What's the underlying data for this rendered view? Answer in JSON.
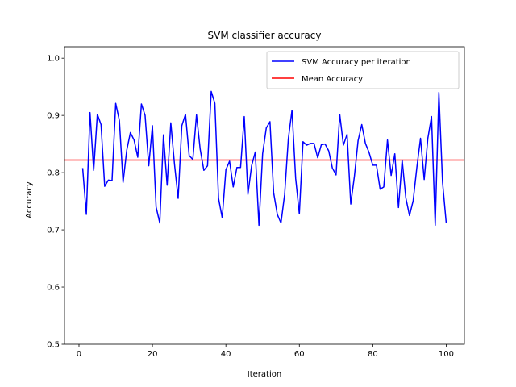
{
  "chart_data": {
    "type": "line",
    "title": "SVM classifier accuracy",
    "xlabel": "Iteration",
    "ylabel": "Accuracy",
    "xlim": [
      -3.95,
      104.95
    ],
    "ylim": [
      0.5,
      1.02
    ],
    "xticks": [
      0,
      20,
      40,
      60,
      80,
      100
    ],
    "yticks": [
      0.5,
      0.6,
      0.7,
      0.8,
      0.9,
      1.0
    ],
    "ytick_labels": [
      "0.5",
      "0.6",
      "0.7",
      "0.8",
      "0.9",
      "1.0"
    ],
    "grid": false,
    "legend_position": "top-right",
    "series": [
      {
        "name": "SVM Accuracy per iteration",
        "color": "#0000ff",
        "x": [
          1,
          2,
          3,
          4,
          5,
          6,
          7,
          8,
          9,
          10,
          11,
          12,
          13,
          14,
          15,
          16,
          17,
          18,
          19,
          20,
          21,
          22,
          23,
          24,
          25,
          26,
          27,
          28,
          29,
          30,
          31,
          32,
          33,
          34,
          35,
          36,
          37,
          38,
          39,
          40,
          41,
          42,
          43,
          44,
          45,
          46,
          47,
          48,
          49,
          50,
          51,
          52,
          53,
          54,
          55,
          56,
          57,
          58,
          59,
          60,
          61,
          62,
          63,
          64,
          65,
          66,
          67,
          68,
          69,
          70,
          71,
          72,
          73,
          74,
          75,
          76,
          77,
          78,
          79,
          80,
          81,
          82,
          83,
          84,
          85,
          86,
          87,
          88,
          89,
          90,
          91,
          92,
          93,
          94,
          95,
          96,
          97,
          98,
          99,
          100
        ],
        "values": [
          0.808,
          0.727,
          0.905,
          0.804,
          0.902,
          0.884,
          0.776,
          0.787,
          0.786,
          0.921,
          0.891,
          0.783,
          0.839,
          0.87,
          0.857,
          0.827,
          0.92,
          0.9,
          0.812,
          0.882,
          0.74,
          0.712,
          0.866,
          0.778,
          0.887,
          0.815,
          0.755,
          0.882,
          0.902,
          0.83,
          0.823,
          0.901,
          0.841,
          0.804,
          0.812,
          0.942,
          0.921,
          0.755,
          0.721,
          0.805,
          0.82,
          0.775,
          0.809,
          0.809,
          0.898,
          0.762,
          0.812,
          0.836,
          0.708,
          0.833,
          0.878,
          0.889,
          0.765,
          0.727,
          0.712,
          0.762,
          0.859,
          0.909,
          0.79,
          0.728,
          0.854,
          0.848,
          0.851,
          0.851,
          0.826,
          0.849,
          0.85,
          0.838,
          0.808,
          0.796,
          0.902,
          0.848,
          0.867,
          0.745,
          0.794,
          0.856,
          0.884,
          0.851,
          0.835,
          0.813,
          0.813,
          0.771,
          0.775,
          0.857,
          0.795,
          0.833,
          0.739,
          0.822,
          0.756,
          0.725,
          0.751,
          0.809,
          0.86,
          0.788,
          0.86,
          0.898,
          0.708,
          0.94,
          0.783,
          0.712
        ]
      },
      {
        "name": "Mean Accuracy",
        "color": "#ff0000",
        "constant": 0.822
      }
    ]
  }
}
